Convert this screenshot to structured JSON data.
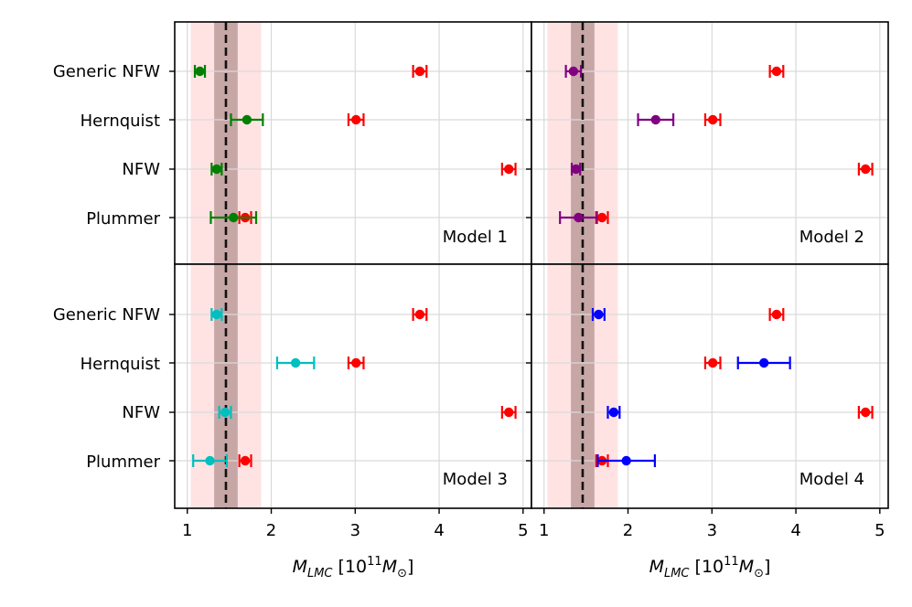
{
  "chart_data": {
    "type": "scatter",
    "description_free": true,
    "categories": [
      "Generic NFW",
      "Hernquist",
      "NFW",
      "Plummer"
    ],
    "xlim": [
      0.85,
      5.1
    ],
    "xticks": [
      1,
      2,
      3,
      4,
      5
    ],
    "xlabel_parts": {
      "sym": "M",
      "sub": "LMC",
      "bracket_open": " [10",
      "exp": "11",
      "unit": "M",
      "unit_sub": "⊙",
      "bracket_close": "]"
    },
    "reference": {
      "line": 1.46,
      "inner_band": [
        1.32,
        1.6
      ],
      "outer_band": [
        1.04,
        1.88
      ],
      "line_color": "#111111",
      "inner_color": "#c7a6a6",
      "outer_color": "#ffe3e3"
    },
    "red_series": {
      "color": "#ff0000",
      "points": [
        {
          "category": "Generic NFW",
          "x": 3.77,
          "err": 0.08
        },
        {
          "category": "Hernquist",
          "x": 3.01,
          "err": 0.09
        },
        {
          "category": "NFW",
          "x": 4.83,
          "err": 0.08
        },
        {
          "category": "Plummer",
          "x": 1.69,
          "err": 0.07
        }
      ]
    },
    "panels": [
      {
        "label": "Model 1",
        "color": "#008000",
        "points": [
          {
            "category": "Generic NFW",
            "x": 1.15,
            "err": 0.06
          },
          {
            "category": "Hernquist",
            "x": 1.71,
            "err": 0.19
          },
          {
            "category": "NFW",
            "x": 1.35,
            "err": 0.06
          },
          {
            "category": "Plummer",
            "x": 1.55,
            "err": 0.27
          }
        ]
      },
      {
        "label": "Model 2",
        "color": "#800080",
        "points": [
          {
            "category": "Generic NFW",
            "x": 1.35,
            "err": 0.09
          },
          {
            "category": "Hernquist",
            "x": 2.33,
            "err": 0.21
          },
          {
            "category": "NFW",
            "x": 1.38,
            "err": 0.05
          },
          {
            "category": "Plummer",
            "x": 1.41,
            "err": 0.22
          }
        ]
      },
      {
        "label": "Model 3",
        "color": "#00bfbf",
        "points": [
          {
            "category": "Generic NFW",
            "x": 1.35,
            "err": 0.06
          },
          {
            "category": "Hernquist",
            "x": 2.29,
            "err": 0.22
          },
          {
            "category": "NFW",
            "x": 1.45,
            "err": 0.07
          },
          {
            "category": "Plummer",
            "x": 1.27,
            "err": 0.2
          }
        ]
      },
      {
        "label": "Model 4",
        "color": "#0000ff",
        "points": [
          {
            "category": "Generic NFW",
            "x": 1.65,
            "err": 0.07
          },
          {
            "category": "Hernquist",
            "x": 3.62,
            "err": 0.31
          },
          {
            "category": "NFW",
            "x": 1.83,
            "err": 0.07
          },
          {
            "category": "Plummer",
            "x": 1.98,
            "err": 0.34
          }
        ]
      }
    ]
  }
}
